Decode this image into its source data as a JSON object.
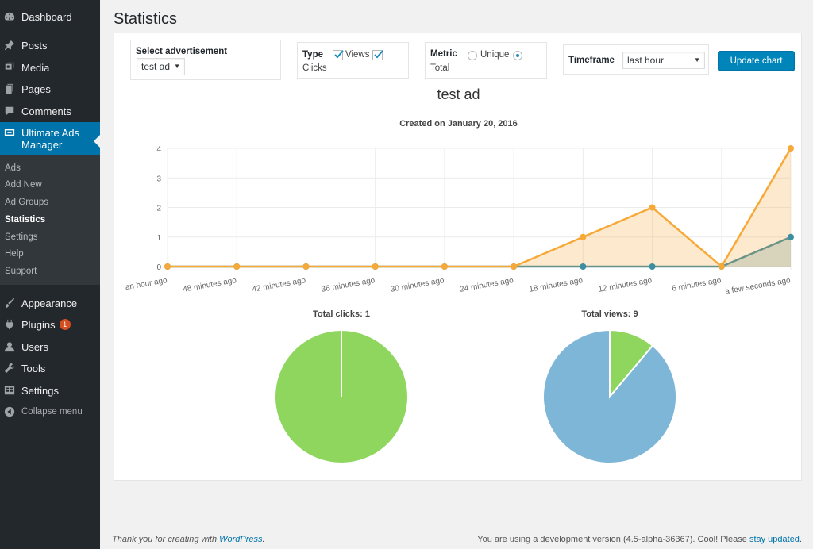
{
  "menu": {
    "dashboard": "Dashboard",
    "posts": "Posts",
    "media": "Media",
    "pages": "Pages",
    "comments": "Comments",
    "ultimate_ads": "Ultimate Ads Manager",
    "appearance": "Appearance",
    "plugins": "Plugins",
    "plugins_badge": "1",
    "users": "Users",
    "tools": "Tools",
    "settings": "Settings",
    "collapse": "Collapse menu"
  },
  "submenu": {
    "ads": "Ads",
    "add_new": "Add New",
    "ad_groups": "Ad Groups",
    "statistics": "Statistics",
    "settings": "Settings",
    "help": "Help",
    "support": "Support"
  },
  "page": {
    "title": "Statistics"
  },
  "controls": {
    "select_ad_label": "Select advertisement",
    "select_ad_value": "test ad",
    "type_label": "Type",
    "type_views": "Views",
    "type_clicks": "Clicks",
    "metric_label": "Metric",
    "metric_unique": "Unique",
    "metric_total": "Total",
    "timeframe_label": "Timeframe",
    "timeframe_value": "last hour",
    "update_button": "Update chart"
  },
  "ad": {
    "name": "test ad",
    "created": "Created on January 20, 2016"
  },
  "colors": {
    "views": "#f7a937",
    "clicks": "#3c8ea1",
    "pie_green": "#8fd65e",
    "pie_blue": "#7eb6d7",
    "accent": "#0085ba"
  },
  "chart_data": [
    {
      "type": "line",
      "categories": [
        "an hour ago",
        "48 minutes ago",
        "42 minutes ago",
        "36 minutes ago",
        "30 minutes ago",
        "24 minutes ago",
        "18 minutes ago",
        "12 minutes ago",
        "6 minutes ago",
        "a few seconds ago"
      ],
      "series": [
        {
          "values": [
            0,
            0,
            0,
            0,
            0,
            0,
            1,
            2,
            0,
            4
          ]
        },
        {
          "values": [
            0,
            0,
            0,
            0,
            0,
            0,
            0,
            0,
            0,
            1
          ]
        }
      ],
      "ylim": [
        0,
        4
      ],
      "yticks": [
        0,
        1,
        2,
        3,
        4
      ],
      "grid": true,
      "area": true
    },
    {
      "type": "pie",
      "title": "Total clicks: 1",
      "slices": [
        1
      ]
    },
    {
      "type": "pie",
      "title": "Total views: 9",
      "slices": [
        1,
        8
      ]
    }
  ],
  "footer": {
    "left_text": "Thank you for creating with ",
    "left_link": "WordPress",
    "left_end": ".",
    "right_text": "You are using a development version (4.5-alpha-36367). Cool! Please ",
    "right_link": "stay updated",
    "right_end": "."
  }
}
